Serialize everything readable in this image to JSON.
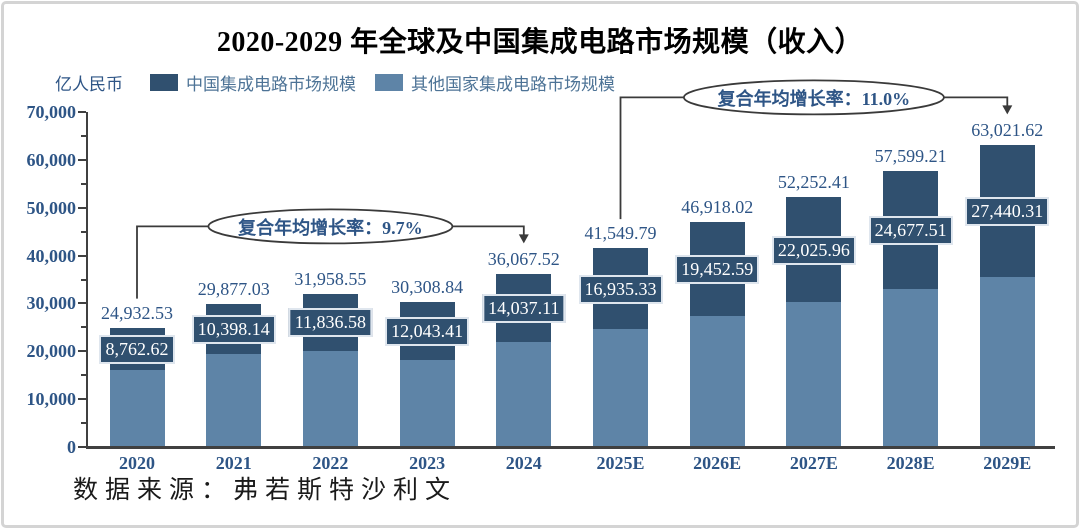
{
  "chart_data": {
    "type": "bar",
    "stacked": true,
    "title": "2020-2029 年全球及中国集成电路市场规模（收入）",
    "unit_label": "亿人民币",
    "source": "数据来源：弗若斯特沙利文",
    "legend_position": "top",
    "grid": false,
    "ylim": [
      0,
      70000
    ],
    "ytick_step": 10000,
    "yminor_step": 5000,
    "categories": [
      "2020",
      "2021",
      "2022",
      "2023",
      "2024",
      "2025E",
      "2026E",
      "2027E",
      "2028E",
      "2029E"
    ],
    "totals": [
      24932.53,
      29877.03,
      31958.55,
      30308.84,
      36067.52,
      41549.79,
      46918.02,
      52252.41,
      57599.21,
      63021.62
    ],
    "series": [
      {
        "name": "中国集成电路市场规模",
        "color": "#30506f",
        "values": [
          8762.62,
          10398.14,
          11836.58,
          12043.41,
          14037.11,
          16935.33,
          19452.59,
          22025.96,
          24677.51,
          27440.31
        ]
      },
      {
        "name": "其他国家集成电路市场规模",
        "color": "#5e84a7",
        "values": [
          16169.91,
          19478.89,
          20121.97,
          18265.43,
          22030.41,
          24614.46,
          27465.43,
          30226.45,
          32921.7,
          35581.31
        ]
      }
    ],
    "annotations": [
      {
        "text": "复合年均增长率：9.7%",
        "from": "2020",
        "to": "2024"
      },
      {
        "text": "复合年均增长率：11.0%",
        "from": "2025E",
        "to": "2029E"
      }
    ],
    "style": {
      "axis_text_color": "#2e5586",
      "value_text_color": "#2e5586",
      "legend_text_color": "#4d7396",
      "box_text_color": "#ffffff",
      "bracket_line_color": "#3a3a3a",
      "axis_line_color": "#404040",
      "title_color": "#000000",
      "source_color": "#1a1a1a",
      "frame_border_color": "#d4d4d4"
    }
  }
}
